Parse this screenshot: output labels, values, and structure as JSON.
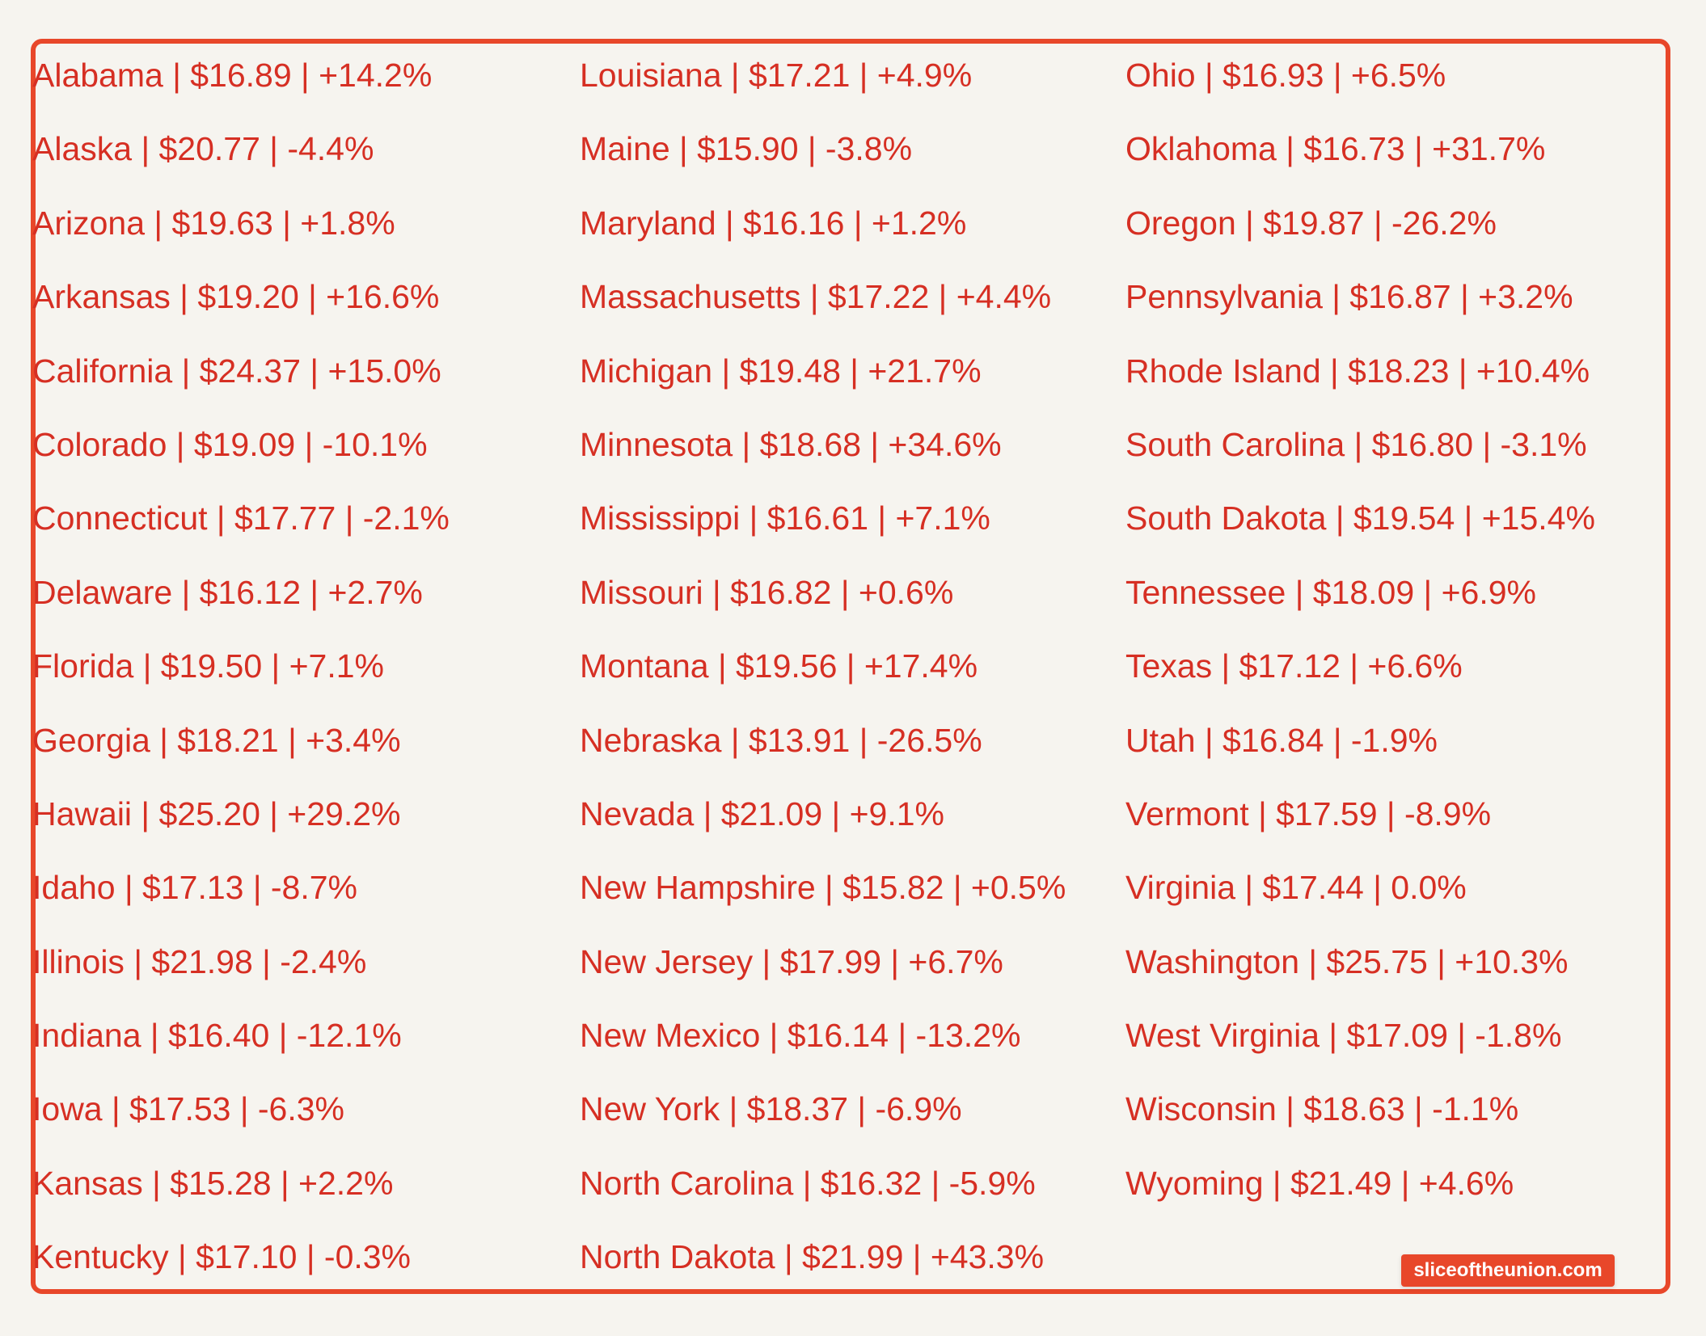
{
  "columns": [
    [
      "Alabama | $16.89 | +14.2%",
      "Alaska | $20.77 | -4.4%",
      "Arizona | $19.63 | +1.8%",
      "Arkansas | $19.20 | +16.6%",
      "California | $24.37 | +15.0%",
      "Colorado | $19.09 | -10.1%",
      "Connecticut | $17.77 | -2.1%",
      "Delaware | $16.12 | +2.7%",
      "Florida | $19.50 | +7.1%",
      "Georgia | $18.21 | +3.4%",
      "Hawaii | $25.20 | +29.2%",
      "Idaho | $17.13 | -8.7%",
      "Illinois | $21.98 | -2.4%",
      "Indiana | $16.40 | -12.1%",
      "Iowa | $17.53 | -6.3%",
      "Kansas | $15.28 | +2.2%",
      "Kentucky | $17.10 | -0.3%"
    ],
    [
      "Louisiana | $17.21 | +4.9%",
      "Maine | $15.90 | -3.8%",
      "Maryland | $16.16 | +1.2%",
      "Massachusetts | $17.22 | +4.4%",
      "Michigan | $19.48 | +21.7%",
      "Minnesota | $18.68 | +34.6%",
      "Mississippi | $16.61 | +7.1%",
      "Missouri | $16.82 | +0.6%",
      "Montana | $19.56 | +17.4%",
      "Nebraska | $13.91 | -26.5%",
      "Nevada | $21.09 | +9.1%",
      "New Hampshire | $15.82 | +0.5%",
      "New Jersey | $17.99 | +6.7%",
      "New Mexico | $16.14 | -13.2%",
      "New York | $18.37 | -6.9%",
      "North Carolina | $16.32 | -5.9%",
      "North Dakota | $21.99 | +43.3%"
    ],
    [
      "Ohio | $16.93 | +6.5%",
      "Oklahoma | $16.73 | +31.7%",
      "Oregon | $19.87 | -26.2%",
      "Pennsylvania | $16.87 | +3.2%",
      "Rhode Island | $18.23 | +10.4%",
      "South Carolina | $16.80 | -3.1%",
      "South Dakota | $19.54 | +15.4%",
      "Tennessee | $18.09 | +6.9%",
      "Texas | $17.12 | +6.6%",
      "Utah | $16.84 | -1.9%",
      "Vermont | $17.59 | -8.9%",
      "Virginia | $17.44 | 0.0%",
      "Washington | $25.75 | +10.3%",
      "West Virginia | $17.09 | -1.8%",
      "Wisconsin | $18.63 | -1.1%",
      "Wyoming | $21.49 | +4.6%"
    ]
  ],
  "watermark": "sliceoftheunion.com",
  "colors": {
    "accent": "#e8472a",
    "text": "#d62f23",
    "background": "#f6f4ef"
  }
}
